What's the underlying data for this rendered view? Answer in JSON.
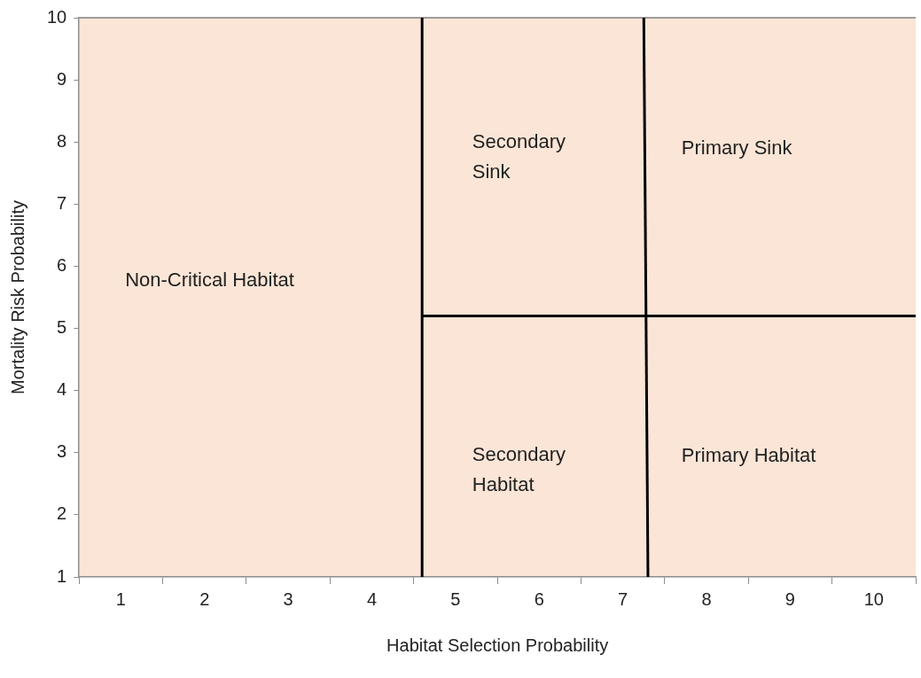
{
  "chart_data": {
    "type": "line",
    "xlabel": "Habitat Selection Probability",
    "ylabel": "Mortality Risk Probability",
    "xlim": [
      0.5,
      10.5
    ],
    "xticks": [
      {
        "value": 0.5,
        "label": null
      },
      1,
      {
        "value": 1.5,
        "label": null
      },
      2,
      {
        "value": 2.5,
        "label": null
      },
      3,
      {
        "value": 3.5,
        "label": null
      },
      4,
      {
        "value": 4.5,
        "label": null
      },
      5,
      {
        "value": 5.5,
        "label": null
      },
      6,
      {
        "value": 6.5,
        "label": null
      },
      7,
      {
        "value": 7.5,
        "label": null
      },
      8,
      {
        "value": 8.5,
        "label": null
      },
      9,
      {
        "value": 9.5,
        "label": null
      },
      10,
      {
        "value": 10.5,
        "label": null
      }
    ],
    "ylim": [
      1,
      10
    ],
    "yticks": [
      1,
      2,
      3,
      4,
      5,
      6,
      7,
      8,
      9,
      10
    ],
    "series": [
      {
        "x": [
          4.6,
          4.6
        ],
        "values": [
          1,
          10
        ],
        "color": "#000000"
      },
      {
        "x": [
          7.3,
          7.25
        ],
        "values": [
          1,
          10
        ],
        "color": "#000000"
      },
      {
        "x": [
          4.6,
          10.5
        ],
        "values": [
          5.2,
          5.2
        ],
        "color": "#000000"
      }
    ],
    "annotations": [
      "Non-Critical Habitat",
      "Secondary\nSink",
      "Primary Sink",
      "Secondary\nHabitat",
      "Primary Habitat"
    ],
    "grid": false,
    "legend": false,
    "marker": "none",
    "line_style": "solid"
  }
}
